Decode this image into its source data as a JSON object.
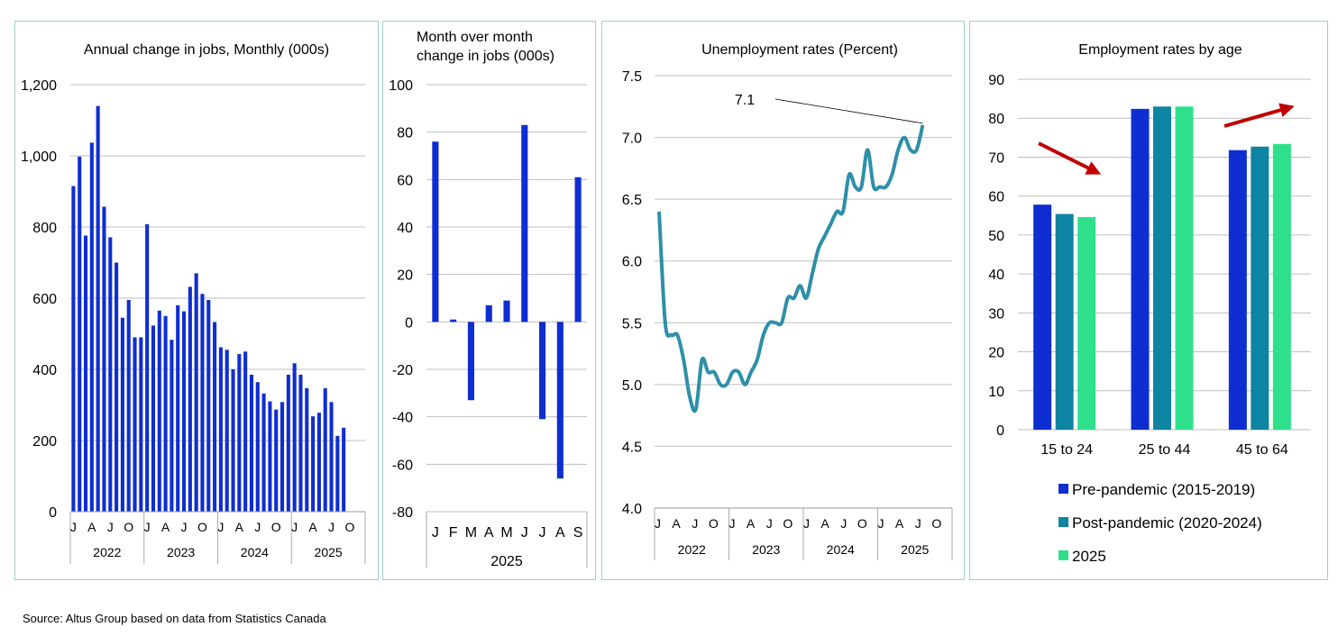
{
  "source": "Source:  Altus Group based on data from Statistics Canada",
  "chart_data": [
    {
      "type": "bar",
      "title": "Annual change in jobs, Monthly  (000s)",
      "ylim": [
        0,
        1200
      ],
      "yticks": [
        "0",
        "200",
        "400",
        "600",
        "800",
        "1,000",
        "1,200"
      ],
      "ytick_values": [
        0,
        200,
        400,
        600,
        800,
        1000,
        1200
      ],
      "month_labels": [
        "J",
        "A",
        "J",
        "O"
      ],
      "years": [
        "2022",
        "2023",
        "2024",
        "2025"
      ],
      "values": [
        915,
        998,
        776,
        1037,
        1140,
        857,
        771,
        700,
        545,
        595,
        490,
        490,
        808,
        523,
        565,
        550,
        483,
        580,
        563,
        632,
        670,
        612,
        595,
        533,
        462,
        455,
        400,
        443,
        450,
        385,
        364,
        332,
        310,
        287,
        308,
        385,
        417,
        385,
        347,
        268,
        278,
        347,
        308,
        213,
        236
      ]
    },
    {
      "type": "bar",
      "title": [
        "Month over month",
        "change in jobs (000s)"
      ],
      "ylim": [
        -80,
        100
      ],
      "yticks": [
        "-80",
        "-60",
        "-40",
        "-20",
        "0",
        "20",
        "40",
        "60",
        "80",
        "100"
      ],
      "ytick_values": [
        -80,
        -60,
        -40,
        -20,
        0,
        20,
        40,
        60,
        80,
        100
      ],
      "categories": [
        "J",
        "F",
        "M",
        "A",
        "M",
        "J",
        "J",
        "A",
        "S"
      ],
      "values": [
        76,
        1,
        -33,
        7,
        9,
        83,
        -41,
        -66,
        61
      ],
      "group_label": "2025"
    },
    {
      "type": "line",
      "title": "Unemployment rates (Percent)",
      "ylim": [
        4.0,
        7.5
      ],
      "yticks": [
        "4.0",
        "4.5",
        "5.0",
        "5.5",
        "6.0",
        "6.5",
        "7.0",
        "7.5"
      ],
      "ytick_values": [
        4.0,
        4.5,
        5.0,
        5.5,
        6.0,
        6.5,
        7.0,
        7.5
      ],
      "month_labels": [
        "J",
        "A",
        "J",
        "O"
      ],
      "years": [
        "2022",
        "2023",
        "2024",
        "2025"
      ],
      "values": [
        6.4,
        5.5,
        5.4,
        5.4,
        5.2,
        4.9,
        4.8,
        5.2,
        5.1,
        5.1,
        5.0,
        5.0,
        5.1,
        5.1,
        5.0,
        5.1,
        5.2,
        5.4,
        5.5,
        5.5,
        5.5,
        5.7,
        5.7,
        5.8,
        5.7,
        5.9,
        6.1,
        6.2,
        6.3,
        6.4,
        6.4,
        6.7,
        6.6,
        6.6,
        6.9,
        6.6,
        6.6,
        6.6,
        6.7,
        6.9,
        7.0,
        6.9,
        6.9,
        7.1
      ],
      "annotation": "7.1"
    },
    {
      "type": "bar",
      "title": "Employment rates by age",
      "ylim": [
        0,
        90
      ],
      "yticks": [
        "0",
        "10",
        "20",
        "30",
        "40",
        "50",
        "60",
        "70",
        "80",
        "90"
      ],
      "ytick_values": [
        0,
        10,
        20,
        30,
        40,
        50,
        60,
        70,
        80,
        90
      ],
      "categories": [
        "15 to 24",
        "25 to 44",
        "45 to 64"
      ],
      "series": [
        {
          "name": "Pre-pandemic (2015-2019)",
          "color": "#0f2ed1",
          "values": [
            57.8,
            82.4,
            71.8
          ]
        },
        {
          "name": "Post-pandemic (2020-2024)",
          "color": "#0e84a3",
          "values": [
            55.4,
            83.0,
            72.7
          ]
        },
        {
          "name": "2025",
          "color": "#2ee08b",
          "values": [
            54.6,
            83.0,
            73.4
          ]
        }
      ],
      "annotations": [
        "trend-down-arrow",
        "trend-up-arrow"
      ]
    }
  ],
  "colors": {
    "bar": "#0f2ed1",
    "line": "#2e8fa8",
    "grid": "#bfbfbf",
    "arrow": "#c00000",
    "border": "#9fcfcd"
  }
}
